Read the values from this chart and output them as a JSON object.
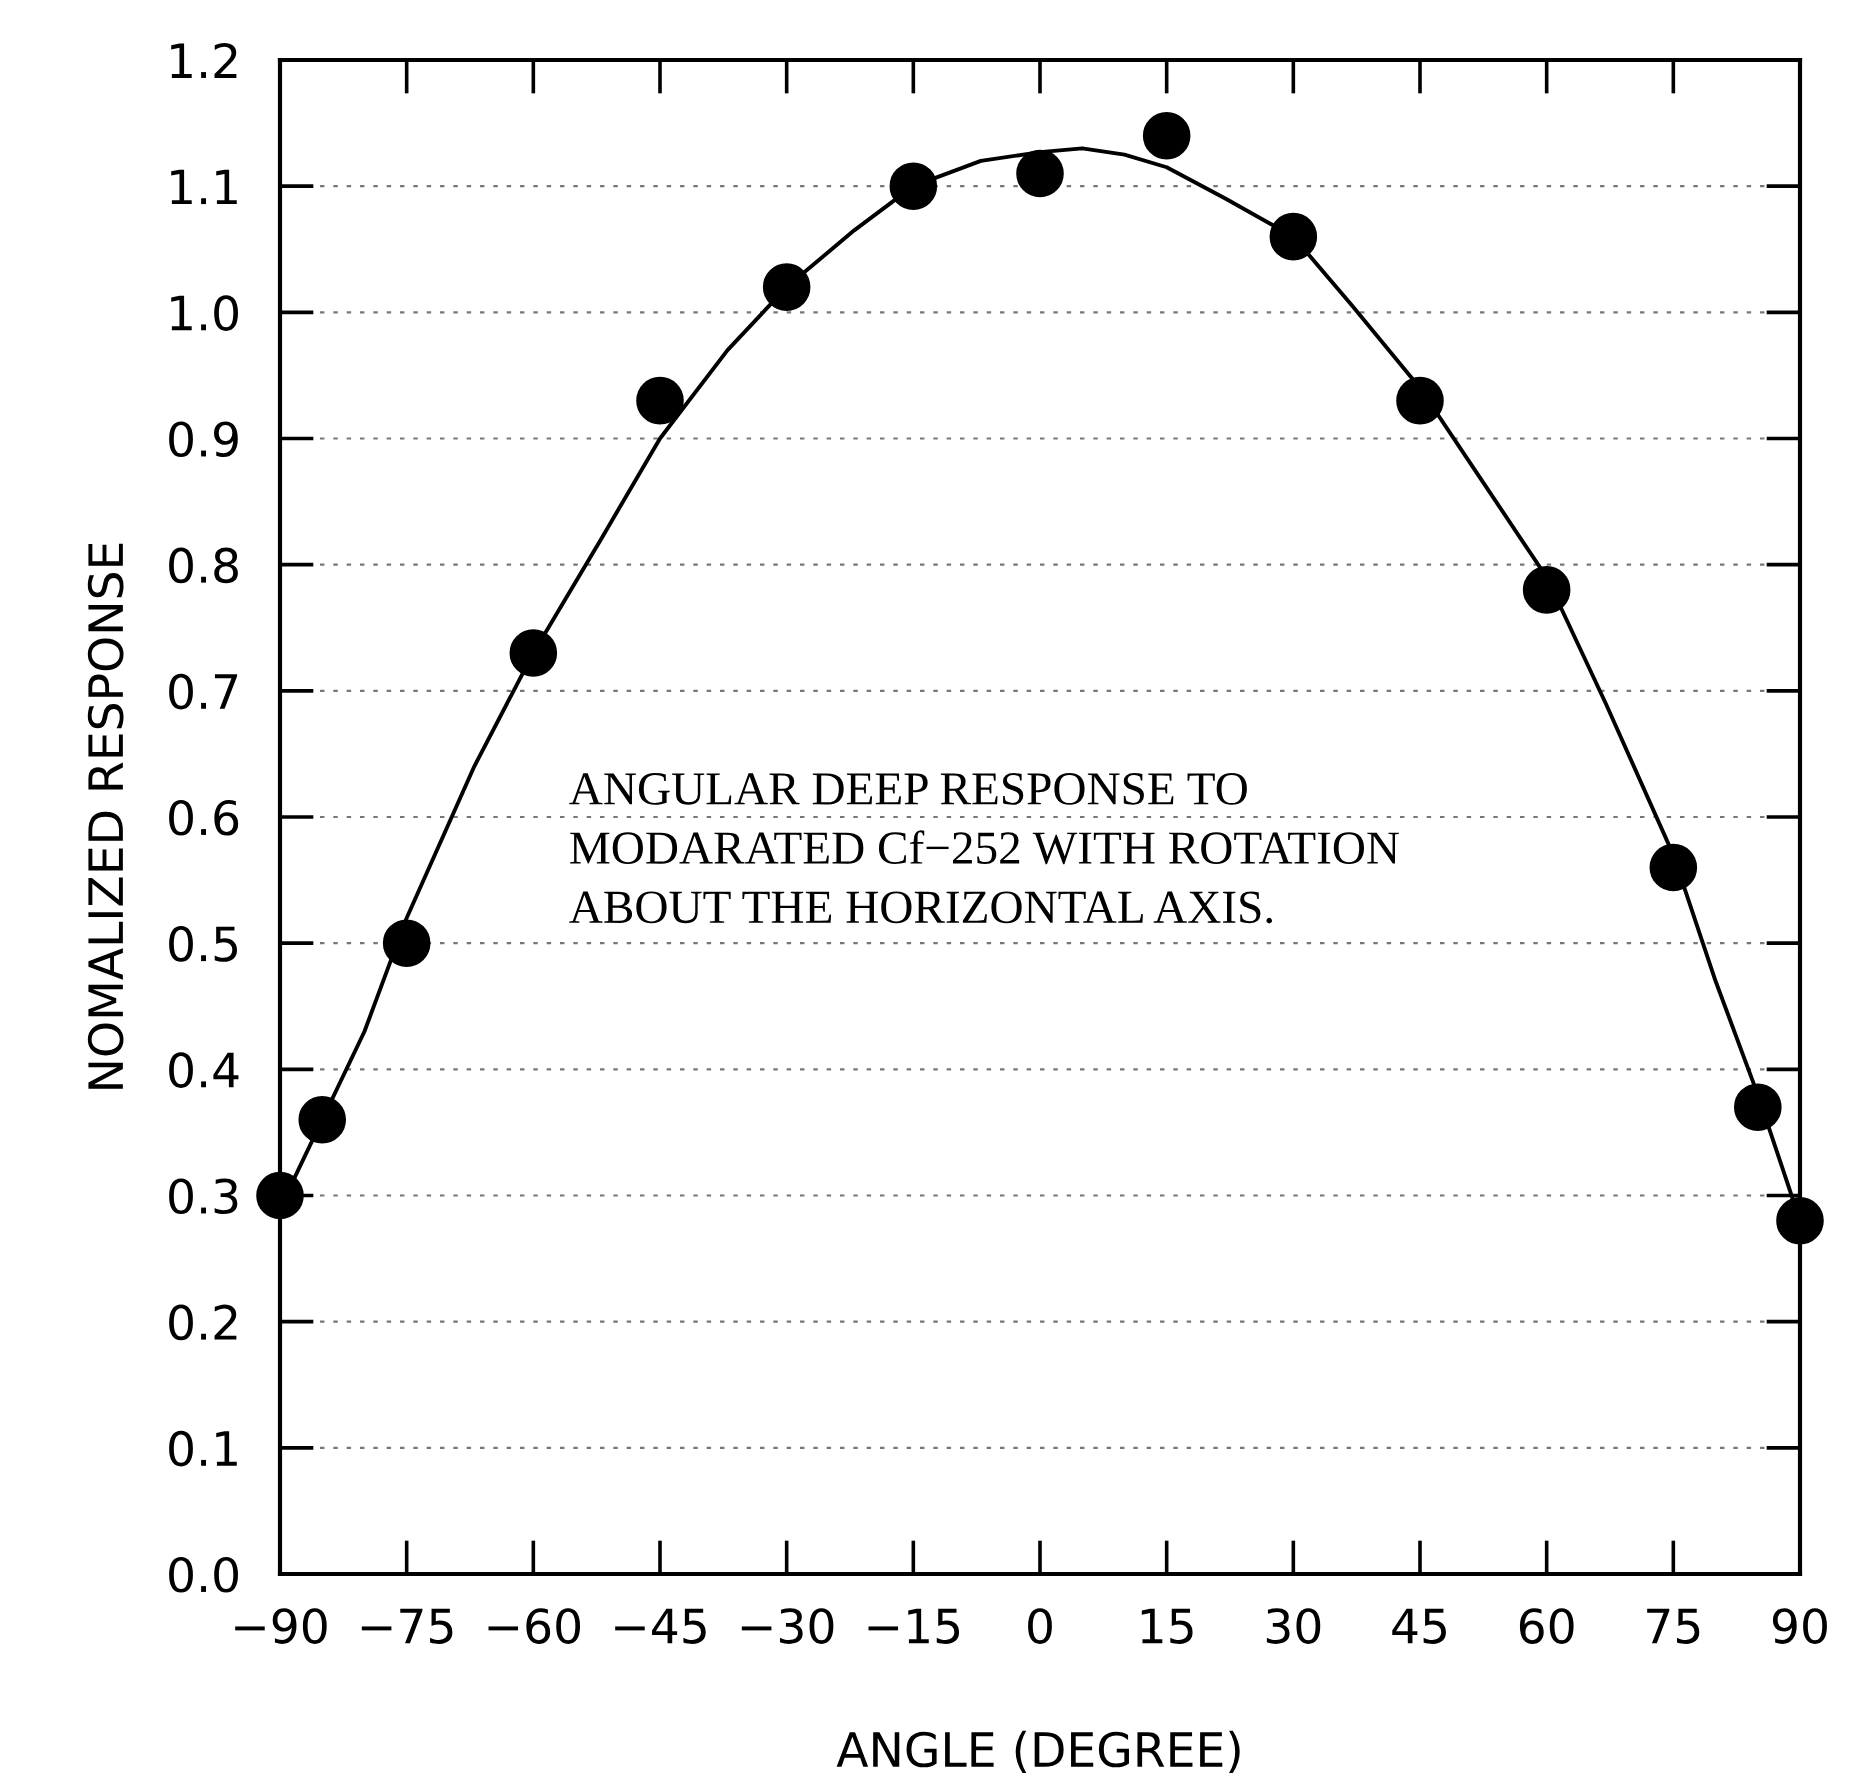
{
  "chart_data": {
    "type": "scatter",
    "xlabel": "ANGLE (DEGREE)",
    "ylabel": "NOMALIZED RESPONSE",
    "x": [
      -90,
      -85,
      -75,
      -60,
      -45,
      -30,
      -15,
      0,
      15,
      30,
      45,
      60,
      75,
      85,
      90
    ],
    "series": [
      {
        "color": "#000000",
        "marker": "circle",
        "values": [
          0.3,
          0.36,
          0.5,
          0.73,
          0.93,
          1.02,
          1.1,
          1.11,
          1.14,
          1.06,
          0.93,
          0.78,
          0.56,
          0.37,
          0.28
        ]
      },
      {
        "type": "line",
        "color": "#000000",
        "marker": "none",
        "line_style": "solid",
        "x": [
          -90,
          -80,
          -75,
          -67,
          -60,
          -52,
          -45,
          -37,
          -30,
          -22,
          -15,
          -7,
          0,
          5,
          10,
          15,
          22,
          30,
          37,
          45,
          52,
          60,
          67,
          75,
          80,
          85,
          90
        ],
        "values": [
          0.29,
          0.43,
          0.52,
          0.64,
          0.73,
          0.82,
          0.9,
          0.97,
          1.02,
          1.065,
          1.1,
          1.12,
          1.127,
          1.13,
          1.125,
          1.115,
          1.09,
          1.06,
          1.005,
          0.94,
          0.87,
          0.79,
          0.69,
          0.57,
          0.47,
          0.38,
          0.28
        ]
      }
    ],
    "xlim": [
      -90,
      90
    ],
    "ylim": [
      0.0,
      1.2
    ],
    "xticks": [
      {
        "value": -90,
        "label": "−90"
      },
      {
        "value": -75,
        "label": "−75"
      },
      {
        "value": -60,
        "label": "−60"
      },
      {
        "value": -45,
        "label": "−45"
      },
      {
        "value": -30,
        "label": "−30"
      },
      {
        "value": -15,
        "label": "−15"
      },
      0,
      15,
      30,
      45,
      60,
      75,
      90
    ],
    "yticks": [
      {
        "value": 0,
        "label": "0.0"
      },
      0.1,
      0.2,
      0.3,
      0.4,
      0.5,
      0.6,
      0.7,
      0.8,
      0.9,
      {
        "value": 1,
        "label": "1.0"
      },
      1.1,
      1.2
    ],
    "grid": "y",
    "annotations": [
      "ANGULAR DEEP RESPONSE TO\nMODARATED Cf−252 WITH ROTATION\nABOUT THE HORIZONTAL AXIS."
    ]
  }
}
